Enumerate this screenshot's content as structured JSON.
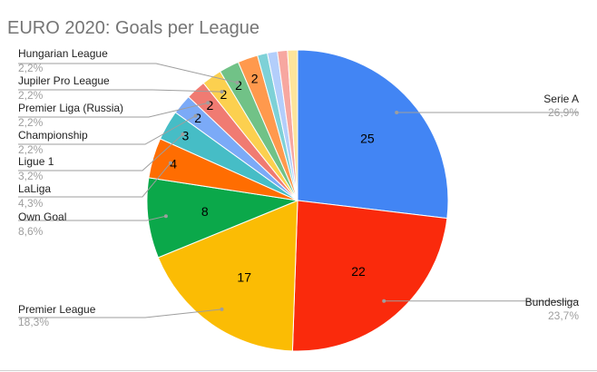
{
  "chart_data": {
    "type": "pie",
    "title": "EURO 2020: Goals per League",
    "start_angle_deg": 0,
    "direction": "clockwise",
    "slices": [
      {
        "label": "Serie A",
        "value": 25,
        "value_label": "25",
        "percent": "26,9%",
        "color": "#4285f4",
        "show_value": true,
        "legend": true
      },
      {
        "label": "Bundesliga",
        "value": 22,
        "value_label": "22",
        "percent": "23,7%",
        "color": "#fa2a0c",
        "show_value": true,
        "legend": true
      },
      {
        "label": "Premier League",
        "value": 17,
        "value_label": "17",
        "percent": "18,3%",
        "color": "#fbbc04",
        "show_value": true,
        "legend": true
      },
      {
        "label": "Own Goal",
        "value": 8,
        "value_label": "8",
        "percent": "8,6%",
        "color": "#0ba84a",
        "show_value": true,
        "legend": true
      },
      {
        "label": "LaLiga",
        "value": 4,
        "value_label": "4",
        "percent": "4,3%",
        "color": "#ff6d01",
        "show_value": true,
        "legend": true
      },
      {
        "label": "Ligue 1",
        "value": 3,
        "value_label": "3",
        "percent": "3,2%",
        "color": "#46bdc6",
        "show_value": true,
        "legend": true
      },
      {
        "label": "Championship",
        "value": 2,
        "value_label": "2",
        "percent": "2,2%",
        "color": "#7baaf7",
        "show_value": true,
        "legend": true
      },
      {
        "label": "Premier Liga (Russia)",
        "value": 2,
        "value_label": "2",
        "percent": "2,2%",
        "color": "#f07b72",
        "show_value": true,
        "legend": true
      },
      {
        "label": "Jupiler Pro League",
        "value": 2,
        "value_label": "2",
        "percent": "2,2%",
        "color": "#fcd04f",
        "show_value": true,
        "legend": true
      },
      {
        "label": "Hungarian League",
        "value": 2,
        "value_label": "2",
        "percent": "2,2%",
        "color": "#71c287",
        "show_value": true,
        "legend": true
      },
      {
        "label": "",
        "value": 2,
        "value_label": "2",
        "percent": "",
        "color": "#ff994d",
        "show_value": true,
        "legend": false
      },
      {
        "label": "",
        "value": 1,
        "value_label": "",
        "percent": "",
        "color": "#7ed1d7",
        "show_value": false,
        "legend": false
      },
      {
        "label": "",
        "value": 1,
        "value_label": "",
        "percent": "",
        "color": "#b3cefb",
        "show_value": false,
        "legend": false
      },
      {
        "label": "",
        "value": 1,
        "value_label": "",
        "percent": "",
        "color": "#f7a7a0",
        "show_value": false,
        "legend": false
      },
      {
        "label": "",
        "value": 1,
        "value_label": "",
        "percent": "",
        "color": "#fde49b",
        "show_value": false,
        "legend": false
      }
    ]
  }
}
